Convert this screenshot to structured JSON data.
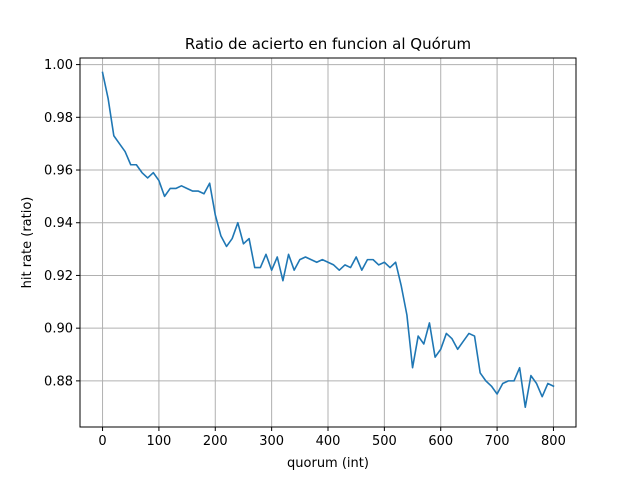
{
  "chart_data": {
    "type": "line",
    "title": "Ratio de acierto en funcion al Quórum",
    "xlabel": "quorum (int)",
    "ylabel": "hit rate (ratio)",
    "xlim": [
      -40,
      840
    ],
    "ylim": [
      0.8625,
      1.0025
    ],
    "xticks": [
      0,
      100,
      200,
      300,
      400,
      500,
      600,
      700,
      800
    ],
    "yticks": [
      0.88,
      0.9,
      0.92,
      0.94,
      0.96,
      0.98,
      1.0
    ],
    "xtick_labels": [
      "0",
      "100",
      "200",
      "300",
      "400",
      "500",
      "600",
      "700",
      "800"
    ],
    "ytick_labels": [
      "0.88",
      "0.90",
      "0.92",
      "0.94",
      "0.96",
      "0.98",
      "1.00"
    ],
    "grid": true,
    "series": [
      {
        "color": "#1f77b4",
        "x": [
          0,
          10,
          20,
          30,
          40,
          50,
          60,
          70,
          80,
          90,
          100,
          110,
          120,
          130,
          140,
          150,
          160,
          170,
          180,
          190,
          200,
          210,
          220,
          230,
          240,
          250,
          260,
          270,
          280,
          290,
          300,
          310,
          320,
          330,
          340,
          350,
          360,
          370,
          380,
          390,
          400,
          410,
          420,
          430,
          440,
          450,
          460,
          470,
          480,
          490,
          500,
          510,
          520,
          530,
          540,
          550,
          560,
          570,
          580,
          590,
          600,
          610,
          620,
          630,
          640,
          650,
          660,
          670,
          680,
          690,
          700,
          710,
          720,
          730,
          740,
          750,
          760,
          770,
          780,
          790,
          800
        ],
        "y": [
          0.997,
          0.987,
          0.973,
          0.97,
          0.967,
          0.962,
          0.962,
          0.959,
          0.957,
          0.959,
          0.956,
          0.95,
          0.953,
          0.953,
          0.954,
          0.953,
          0.952,
          0.952,
          0.951,
          0.955,
          0.943,
          0.935,
          0.931,
          0.934,
          0.94,
          0.932,
          0.934,
          0.923,
          0.923,
          0.928,
          0.922,
          0.927,
          0.918,
          0.928,
          0.922,
          0.926,
          0.927,
          0.926,
          0.925,
          0.926,
          0.925,
          0.924,
          0.922,
          0.924,
          0.923,
          0.927,
          0.922,
          0.926,
          0.926,
          0.924,
          0.925,
          0.923,
          0.925,
          0.916,
          0.905,
          0.885,
          0.897,
          0.894,
          0.902,
          0.889,
          0.892,
          0.898,
          0.896,
          0.892,
          0.895,
          0.898,
          0.897,
          0.883,
          0.88,
          0.878,
          0.875,
          0.879,
          0.88,
          0.88,
          0.885,
          0.87,
          0.882,
          0.879,
          0.874,
          0.879,
          0.878
        ]
      }
    ]
  }
}
